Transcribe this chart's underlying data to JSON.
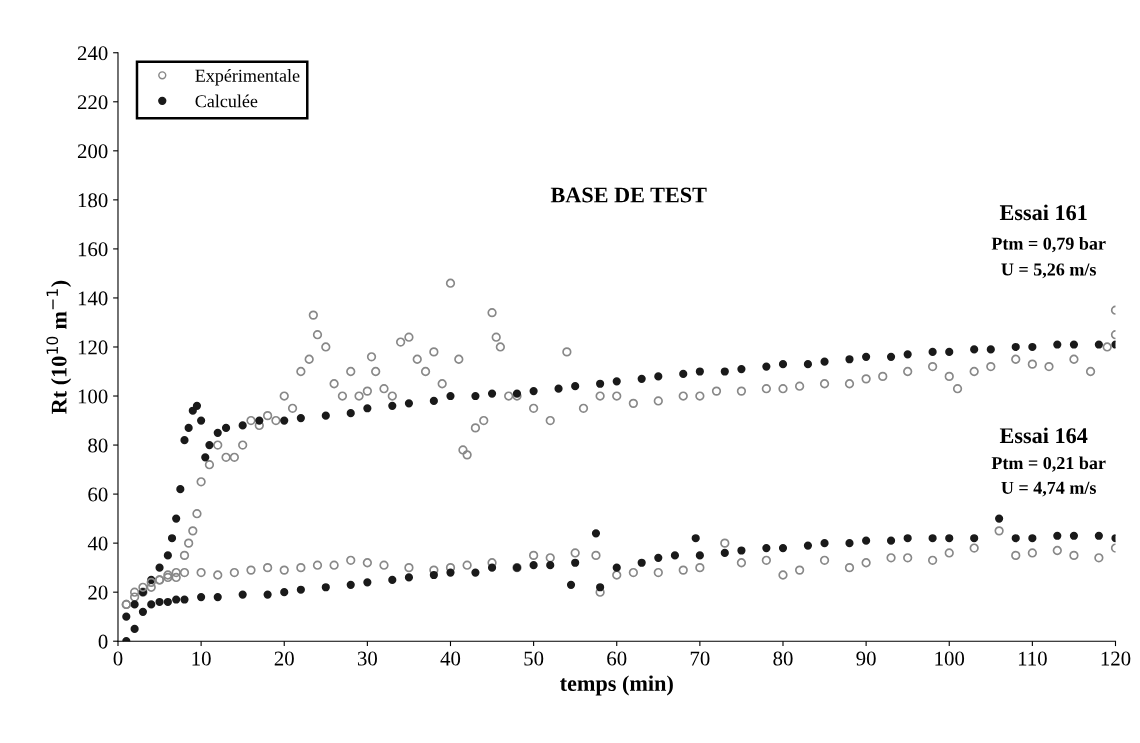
{
  "chart_data": {
    "type": "scatter",
    "xlabel": "temps (min)",
    "ylabel": "Rt (10$^{10}$ m$^{−1}$)",
    "xlim": [
      0,
      120
    ],
    "xticks": [
      0,
      10,
      20,
      30,
      40,
      50,
      60,
      70,
      80,
      90,
      100,
      110,
      120
    ],
    "ylim": [
      0,
      240
    ],
    "yticks": [
      0,
      20,
      40,
      60,
      80,
      100,
      120,
      140,
      160,
      180,
      200,
      220,
      240
    ],
    "grid": false,
    "legend": "top left",
    "marker": "circle",
    "annotations": [
      "BASE DE TEST",
      "Essai 161",
      "Ptm = 0,79 bar",
      "U = 5,26 m/s",
      "Essai 164",
      "Ptm = 0,21 bar",
      "U = 4,74 m/s"
    ],
    "series": [
      {
        "name": "Expérimentale",
        "color": "#888888",
        "x": [
          1,
          2,
          3,
          4,
          5,
          6,
          7,
          8,
          8.5,
          9,
          9.5,
          10,
          11,
          12,
          13,
          14,
          15,
          16,
          17,
          18,
          19,
          20,
          21,
          22,
          23,
          23.5,
          24,
          25,
          26,
          27,
          28,
          29,
          30,
          30.5,
          31,
          32,
          33,
          34,
          35,
          36,
          37,
          38,
          39,
          40,
          41,
          41.5,
          42,
          43,
          44,
          45,
          45.5,
          46,
          47,
          48,
          50,
          52,
          54,
          56,
          58,
          60,
          62,
          65,
          68,
          70,
          72,
          75,
          78,
          80,
          82,
          85,
          88,
          90,
          92,
          95,
          98,
          100,
          101,
          103,
          105,
          108,
          110,
          112,
          115,
          117,
          119,
          120,
          120
        ],
        "values": [
          15,
          18,
          20,
          22,
          25,
          26,
          28,
          35,
          40,
          45,
          52,
          65,
          72,
          80,
          75,
          75,
          80,
          90,
          88,
          92,
          90,
          100,
          95,
          110,
          115,
          133,
          125,
          120,
          105,
          100,
          110,
          100,
          102,
          116,
          110,
          103,
          100,
          122,
          124,
          115,
          110,
          118,
          105,
          146,
          115,
          78,
          76,
          87,
          90,
          134,
          124,
          120,
          100,
          100,
          95,
          90,
          118,
          95,
          100,
          100,
          97,
          98,
          100,
          100,
          102,
          102,
          103,
          103,
          104,
          105,
          105,
          107,
          108,
          110,
          112,
          108,
          103,
          110,
          112,
          115,
          113,
          112,
          115,
          110,
          120,
          135,
          125
        ]
      },
      {
        "name": "Calculée",
        "color": "#1a1a1a",
        "x": [
          1,
          2,
          3,
          4,
          5,
          6,
          6.5,
          7,
          7.5,
          8,
          8.5,
          9,
          9.5,
          10,
          10.5,
          11,
          12,
          13,
          15,
          17,
          20,
          22,
          25,
          28,
          30,
          33,
          35,
          38,
          40,
          43,
          45,
          48,
          50,
          53,
          55,
          58,
          60,
          63,
          65,
          68,
          70,
          73,
          75,
          78,
          80,
          83,
          85,
          88,
          90,
          93,
          95,
          98,
          100,
          103,
          105,
          108,
          110,
          113,
          115,
          118,
          120
        ],
        "values": [
          10,
          15,
          20,
          25,
          30,
          35,
          42,
          50,
          62,
          82,
          87,
          94,
          96,
          90,
          75,
          80,
          85,
          87,
          88,
          90,
          90,
          91,
          92,
          93,
          95,
          96,
          97,
          98,
          100,
          100,
          101,
          101,
          102,
          103,
          104,
          105,
          106,
          107,
          108,
          109,
          110,
          110,
          111,
          112,
          113,
          113,
          114,
          115,
          116,
          116,
          117,
          118,
          118,
          119,
          119,
          120,
          120,
          121,
          121,
          121,
          121
        ]
      },
      {
        "color": "#888888",
        "x": [
          1,
          2,
          3,
          4,
          5,
          6,
          7,
          8,
          10,
          12,
          14,
          16,
          18,
          20,
          22,
          24,
          26,
          28,
          30,
          32,
          35,
          38,
          40,
          42,
          45,
          48,
          50,
          52,
          55,
          57.5,
          58,
          60,
          62,
          65,
          68,
          70,
          73,
          75,
          78,
          80,
          82,
          85,
          88,
          90,
          93,
          95,
          98,
          100,
          103,
          106,
          108,
          110,
          113,
          115,
          118,
          120
        ],
        "values": [
          15,
          20,
          22,
          24,
          25,
          27,
          26,
          28,
          28,
          27,
          28,
          29,
          30,
          29,
          30,
          31,
          31,
          33,
          32,
          31,
          30,
          29,
          30,
          31,
          32,
          30,
          35,
          34,
          36,
          35,
          20,
          27,
          28,
          28,
          29,
          30,
          40,
          32,
          33,
          27,
          29,
          33,
          30,
          32,
          34,
          34,
          33,
          36,
          38,
          45,
          35,
          36,
          37,
          35,
          34,
          38
        ]
      },
      {
        "color": "#1a1a1a",
        "x": [
          1,
          2,
          3,
          4,
          5,
          6,
          7,
          8,
          10,
          12,
          15,
          18,
          20,
          22,
          25,
          28,
          30,
          33,
          35,
          38,
          40,
          43,
          45,
          48,
          50,
          52,
          54.5,
          55,
          57.5,
          58,
          60,
          63,
          65,
          67,
          69.5,
          70,
          73,
          75,
          78,
          80,
          83,
          85,
          88,
          90,
          93,
          95,
          98,
          100,
          103,
          106,
          108,
          110,
          113,
          115,
          118,
          120
        ],
        "values": [
          0,
          5,
          12,
          15,
          16,
          16,
          17,
          17,
          18,
          18,
          19,
          19,
          20,
          21,
          22,
          23,
          24,
          25,
          26,
          27,
          28,
          28,
          30,
          30,
          31,
          31,
          23,
          32,
          44,
          22,
          30,
          32,
          34,
          35,
          42,
          35,
          36,
          37,
          38,
          38,
          39,
          40,
          40,
          41,
          41,
          42,
          42,
          42,
          42,
          50,
          42,
          42,
          43,
          43,
          43,
          42
        ]
      }
    ]
  }
}
